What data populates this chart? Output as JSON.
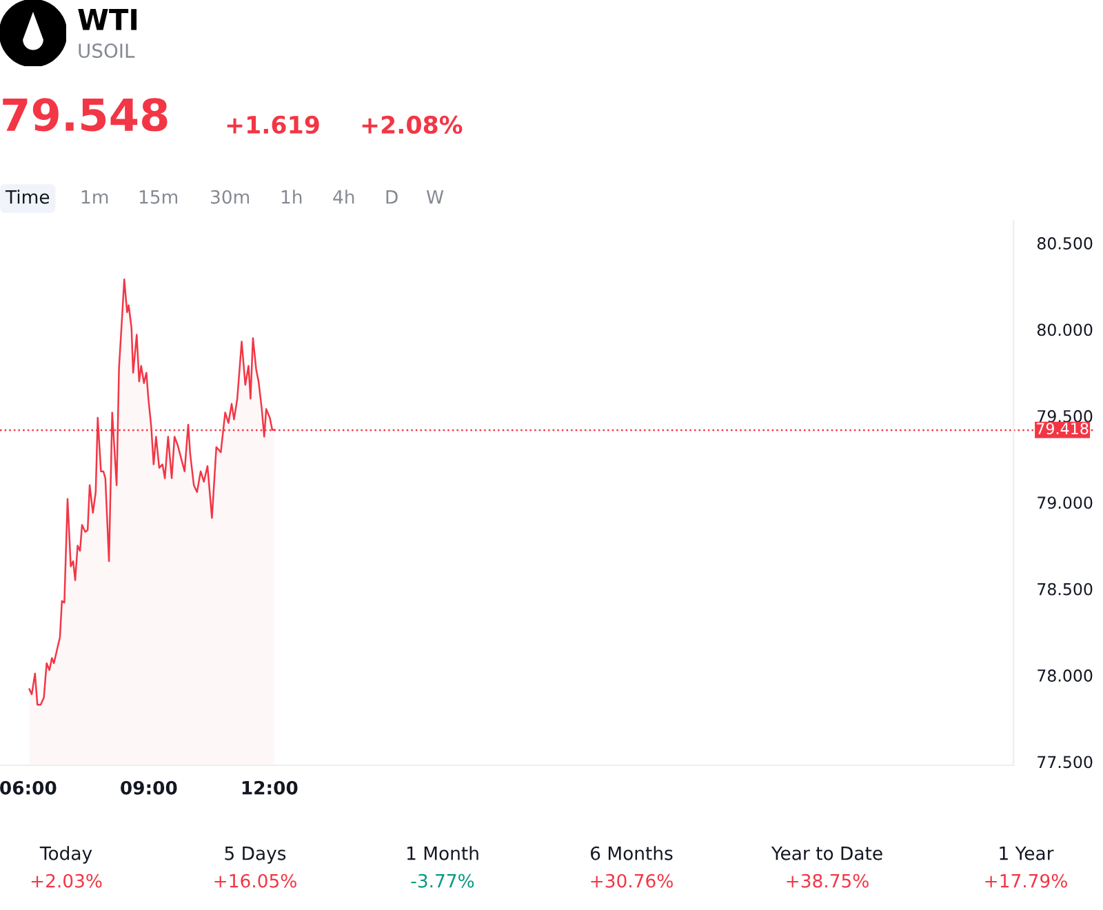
{
  "chart_data": {
    "type": "area",
    "title": "WTI",
    "subtitle": "USOIL",
    "annotations": [
      "79.548",
      "+1.619",
      "+2.08%",
      "Time",
      "1m",
      "15m",
      "30m",
      "1h",
      "4h",
      "D",
      "W",
      "Today",
      "+2.03%",
      "5 Days",
      "+16.05%",
      "1 Month",
      "-3.77%",
      "6 Months",
      "+30.76%",
      "Year to Date",
      "+38.75%",
      "1 Year",
      "+17.79%"
    ],
    "series": [
      {
        "color": "#f23645",
        "x": [
          6.03,
          6.09,
          6.17,
          6.23,
          6.31,
          6.39,
          6.46,
          6.53,
          6.59,
          6.64,
          6.72,
          6.79,
          6.84,
          6.9,
          6.98,
          7.06,
          7.12,
          7.17,
          7.23,
          7.29,
          7.34,
          7.42,
          7.48,
          7.53,
          7.61,
          7.68,
          7.73,
          7.81,
          7.87,
          7.92,
          8.01,
          8.09,
          8.14,
          8.2,
          8.26,
          8.33,
          8.39,
          8.46,
          8.5,
          8.57,
          8.61,
          8.7,
          8.76,
          8.81,
          8.88,
          8.94,
          8.99,
          9.06,
          9.12,
          9.18,
          9.26,
          9.34,
          9.4,
          9.48,
          9.57,
          9.64,
          9.72,
          9.81,
          9.89,
          9.98,
          10.03,
          10.12,
          10.2,
          10.29,
          10.37,
          10.46,
          10.57,
          10.68,
          10.79,
          10.9,
          10.98,
          11.06,
          11.12,
          11.2,
          11.31,
          11.4,
          11.48,
          11.53,
          11.59,
          11.67,
          11.73,
          11.81,
          11.87,
          11.92,
          12.01,
          12.07,
          12.12
        ],
        "values": [
          77.92,
          77.89,
          78.01,
          77.83,
          77.83,
          77.87,
          78.07,
          78.03,
          78.1,
          78.07,
          78.15,
          78.22,
          78.43,
          78.42,
          79.02,
          78.63,
          78.66,
          78.55,
          78.75,
          78.72,
          78.87,
          78.83,
          78.84,
          79.1,
          78.94,
          79.06,
          79.49,
          79.18,
          79.18,
          79.14,
          78.66,
          79.52,
          79.33,
          79.1,
          79.78,
          80.05,
          80.29,
          80.1,
          80.14,
          80.01,
          79.75,
          79.97,
          79.7,
          79.79,
          79.69,
          79.75,
          79.6,
          79.44,
          79.22,
          79.38,
          79.2,
          79.22,
          79.14,
          79.38,
          79.14,
          79.38,
          79.33,
          79.25,
          79.18,
          79.45,
          79.28,
          79.1,
          79.06,
          79.18,
          79.12,
          79.21,
          78.91,
          79.32,
          79.29,
          79.52,
          79.46,
          79.57,
          79.48,
          79.6,
          79.93,
          79.68,
          79.79,
          79.6,
          79.95,
          79.77,
          79.7,
          79.54,
          79.38,
          79.54,
          79.49,
          79.42,
          79.42
        ]
      }
    ],
    "ref_lines": [
      {
        "axis": "y",
        "value": 79.418,
        "label": "79.418",
        "color": "#f23645",
        "line_style": "dotted"
      }
    ],
    "xlim": [
      5.3,
      30.5
    ],
    "ylim": [
      77.48,
      80.63
    ],
    "xticks": [
      {
        "value": 6,
        "label": "06:00"
      },
      {
        "value": 9,
        "label": "09:00"
      },
      {
        "value": 12,
        "label": "12:00"
      }
    ],
    "yticks": [
      {
        "value": 77.5,
        "label": "77.500"
      },
      {
        "value": 78,
        "label": "78.000"
      },
      {
        "value": 78.5,
        "label": "78.500"
      },
      {
        "value": 79,
        "label": "79.000"
      },
      {
        "value": 79.5,
        "label": "79.500"
      },
      {
        "value": 80,
        "label": "80.000"
      },
      {
        "value": 80.5,
        "label": "80.500"
      }
    ],
    "grid": false,
    "legend": false,
    "line_style": "solid",
    "marker": "none"
  }
}
